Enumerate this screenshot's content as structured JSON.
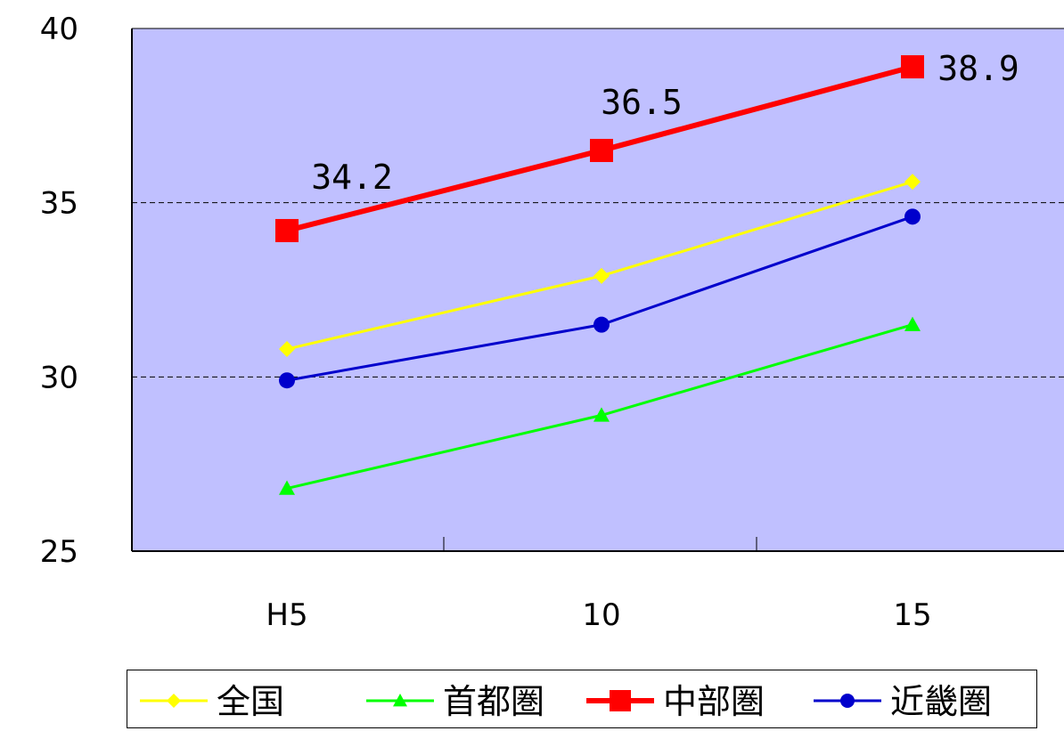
{
  "chart_data": {
    "type": "line",
    "categories": [
      "H5",
      "10",
      "15"
    ],
    "ylim": [
      25,
      40
    ],
    "yticks": [
      "25",
      "30",
      "35",
      "40"
    ],
    "grid": {
      "horizontal_dashed": [
        30,
        35
      ]
    },
    "plot_background": "#c0c0ff",
    "legend_placement": "bottom",
    "series": [
      {
        "name": "全国",
        "values": [
          30.8,
          32.9,
          35.6
        ],
        "color": "#ffff00",
        "marker": "diamond",
        "line_width": 3
      },
      {
        "name": "首都圏",
        "values": [
          26.8,
          28.9,
          31.5
        ],
        "color": "#00ff00",
        "marker": "triangle",
        "line_width": 3
      },
      {
        "name": "中部圏",
        "values": [
          34.2,
          36.5,
          38.9
        ],
        "color": "#ff0000",
        "marker": "square",
        "line_width": 6,
        "data_labels": [
          "34.2",
          "36.5",
          "38.9"
        ]
      },
      {
        "name": "近畿圏",
        "values": [
          29.9,
          31.5,
          34.6
        ],
        "color": "#0000cc",
        "marker": "circle",
        "line_width": 3
      }
    ]
  }
}
